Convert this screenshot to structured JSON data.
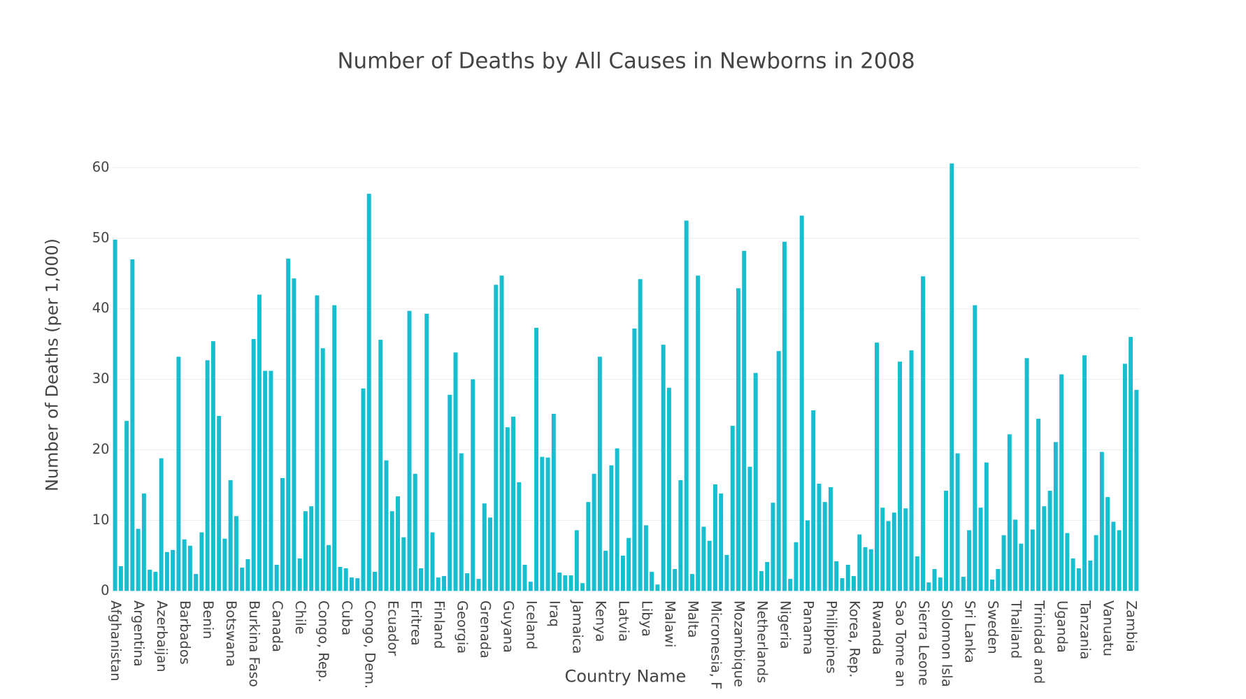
{
  "chart_data": {
    "type": "bar",
    "title": "Number of Deaths by All Causes in Newborns in 2008",
    "x_label": "Country Name",
    "y_label": "Number of Deaths (per 1,000)",
    "color": "#17becf",
    "grid": true,
    "ylim": [
      0,
      62
    ],
    "yticks": [
      0,
      10,
      20,
      30,
      40,
      50,
      60
    ],
    "categories": [
      "Afghanistan",
      null,
      null,
      null,
      "Argentina",
      null,
      null,
      null,
      "Azerbaijan",
      null,
      null,
      null,
      "Barbados",
      null,
      null,
      null,
      "Benin",
      null,
      null,
      null,
      "Botswana",
      null,
      null,
      null,
      "Burkina Faso",
      null,
      null,
      null,
      "Canada",
      null,
      null,
      null,
      "Chile",
      null,
      null,
      null,
      "Congo, Rep.",
      null,
      null,
      null,
      "Cuba",
      null,
      null,
      null,
      "Congo, Dem.",
      null,
      null,
      null,
      "Ecuador",
      null,
      null,
      null,
      "Eritrea",
      null,
      null,
      null,
      "Finland",
      null,
      null,
      null,
      "Georgia",
      null,
      null,
      null,
      "Grenada",
      null,
      null,
      null,
      "Guyana",
      null,
      null,
      null,
      "Iceland",
      null,
      null,
      null,
      "Iraq",
      null,
      null,
      null,
      "Jamaica",
      null,
      null,
      null,
      "Kenya",
      null,
      null,
      null,
      "Latvia",
      null,
      null,
      null,
      "Libya",
      null,
      null,
      null,
      "Malawi",
      null,
      null,
      null,
      "Malta",
      null,
      null,
      null,
      "Micronesia, F",
      null,
      null,
      null,
      "Mozambique",
      null,
      null,
      null,
      "Netherlands",
      null,
      null,
      null,
      "Nigeria",
      null,
      null,
      null,
      "Panama",
      null,
      null,
      null,
      "Philippines",
      null,
      null,
      null,
      "Korea, Rep.",
      null,
      null,
      null,
      "Rwanda",
      null,
      null,
      null,
      "Sao Tome an",
      null,
      null,
      null,
      "Sierra Leone",
      null,
      null,
      null,
      "Solomon Isla",
      null,
      null,
      null,
      "Sri Lanka",
      null,
      null,
      null,
      "Sweden",
      null,
      null,
      null,
      "Thailand",
      null,
      null,
      null,
      "Trinidad and",
      null,
      null,
      null,
      "Uganda",
      null,
      null,
      null,
      "Tanzania",
      null,
      null,
      null,
      "Vanuatu",
      null,
      null,
      null,
      "Zambia",
      null
    ],
    "values": [
      49.8,
      3.5,
      24.1,
      47,
      8.8,
      13.8,
      3,
      2.7,
      18.8,
      5.5,
      5.8,
      33.2,
      7.3,
      6.4,
      2.4,
      8.3,
      32.7,
      35.4,
      24.8,
      7.4,
      15.7,
      10.6,
      3.3,
      4.5,
      35.7,
      42,
      31.2,
      31.2,
      3.7,
      16,
      47.1,
      44.3,
      4.6,
      11.3,
      12,
      41.9,
      34.4,
      6.5,
      40.5,
      3.4,
      3.2,
      1.9,
      1.8,
      28.7,
      56.3,
      2.7,
      35.6,
      18.5,
      11.3,
      13.4,
      7.6,
      39.7,
      16.6,
      3.2,
      39.3,
      8.3,
      1.9,
      2.1,
      27.8,
      33.8,
      19.5,
      2.5,
      30,
      1.7,
      12.4,
      10.4,
      43.4,
      44.7,
      23.2,
      24.7,
      15.4,
      3.7,
      1.3,
      37.3,
      19,
      18.9,
      25.1,
      2.6,
      2.2,
      2.2,
      8.6,
      1.1,
      12.6,
      16.6,
      33.2,
      5.7,
      17.8,
      20.2,
      5,
      7.5,
      37.2,
      44.2,
      9.3,
      2.7,
      0.9,
      34.9,
      28.8,
      3.1,
      15.7,
      52.5,
      2.4,
      44.7,
      9.1,
      7.1,
      15.1,
      13.8,
      5.1,
      23.4,
      42.9,
      48.2,
      17.6,
      30.9,
      2.8,
      4.1,
      12.5,
      34,
      49.5,
      1.7,
      6.9,
      53.2,
      10,
      25.6,
      15.2,
      12.6,
      14.7,
      4.2,
      1.8,
      3.7,
      2.1,
      8,
      6.2,
      5.9,
      35.2,
      11.8,
      9.9,
      11.1,
      32.5,
      11.7,
      34.1,
      4.9,
      44.6,
      1.2,
      3.1,
      1.9,
      14.2,
      60.6,
      19.5,
      2,
      8.6,
      40.5,
      11.8,
      18.2,
      1.6,
      3.1,
      7.9,
      22.2,
      10.1,
      6.7,
      33,
      8.7,
      24.4,
      12,
      14.2,
      21.1,
      30.7,
      8.2,
      4.6,
      3.2,
      33.4,
      4.3,
      7.9,
      19.7,
      13.3,
      9.8,
      8.6,
      32.2,
      36,
      28.5
    ]
  }
}
